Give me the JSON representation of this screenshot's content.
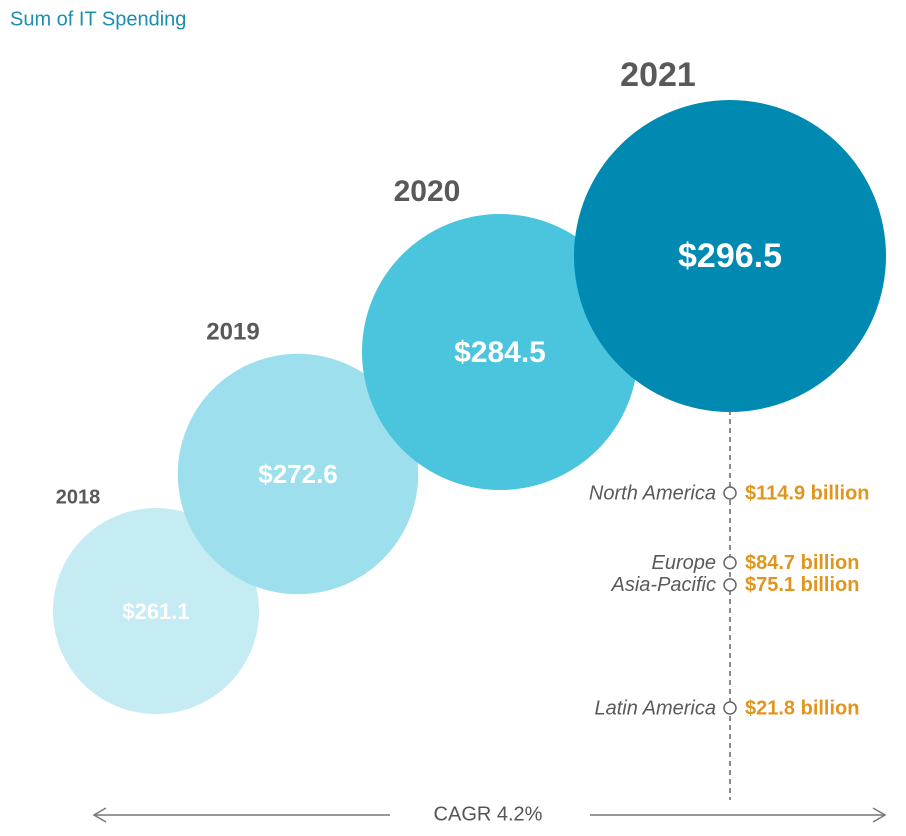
{
  "chart_data": {
    "type": "bubble",
    "title": "Sum of IT Spending",
    "categories": [
      "2018",
      "2019",
      "2020",
      "2021"
    ],
    "values": [
      261.1,
      272.6,
      284.5,
      296.5
    ],
    "value_labels": [
      "$261.1",
      "$272.6",
      "$284.5",
      "$296.5"
    ],
    "colors": [
      "#c5ebf3",
      "#9ddfec",
      "#4bc5dd",
      "#0089b1"
    ],
    "breakdown": {
      "categories": [
        "North America",
        "Europe",
        "Asia-Pacific",
        "Latin America"
      ],
      "values": [
        114.9,
        84.7,
        75.1,
        21.8
      ],
      "value_labels": [
        "$114.9 billion",
        "$84.7 billion",
        "$75.1 billion",
        "$21.8 billion"
      ],
      "color": "#e0961e"
    },
    "annotation": "CAGR 4.2%"
  }
}
